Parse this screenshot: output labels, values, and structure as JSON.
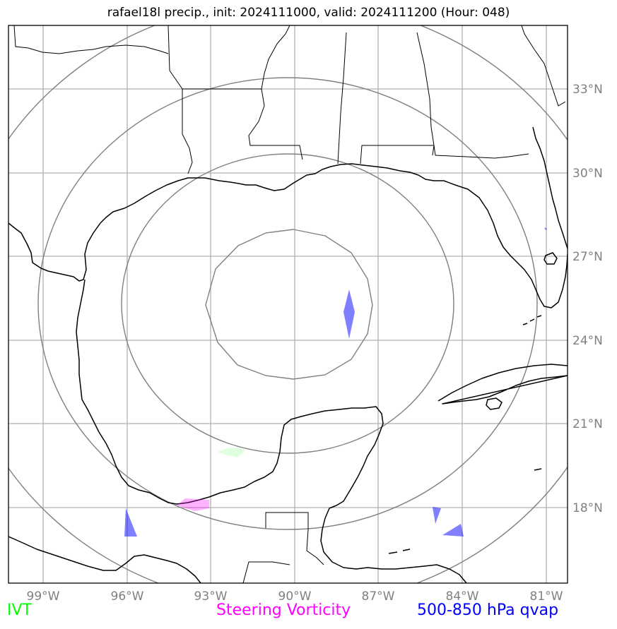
{
  "title": "rafael18l precip., init: 2024111000, valid: 2024111200 (Hour: 048)",
  "lon_labels": [
    "99°W",
    "96°W",
    "93°W",
    "90°W",
    "87°W",
    "84°W",
    "81°W"
  ],
  "lat_labels": [
    "33°N",
    "30°N",
    "27°N",
    "24°N",
    "21°N",
    "18°N"
  ],
  "legend": {
    "ivt": "IVT",
    "steering": "Steering Vorticity",
    "qvap": "500-850 hPa qvap"
  },
  "colors": {
    "ivt": "#00ff00",
    "steering": "#ff00ff",
    "qvap": "#0000ff",
    "grid": "#b0b0b0",
    "range_rings": "#808080",
    "coastline": "#000000"
  },
  "map": {
    "lon_range": [
      -100.2,
      -80.2
    ],
    "lat_range": [
      15.0,
      35.0
    ],
    "range_rings_center": "90°W, 25.5°N",
    "range_ring_count": 4
  }
}
